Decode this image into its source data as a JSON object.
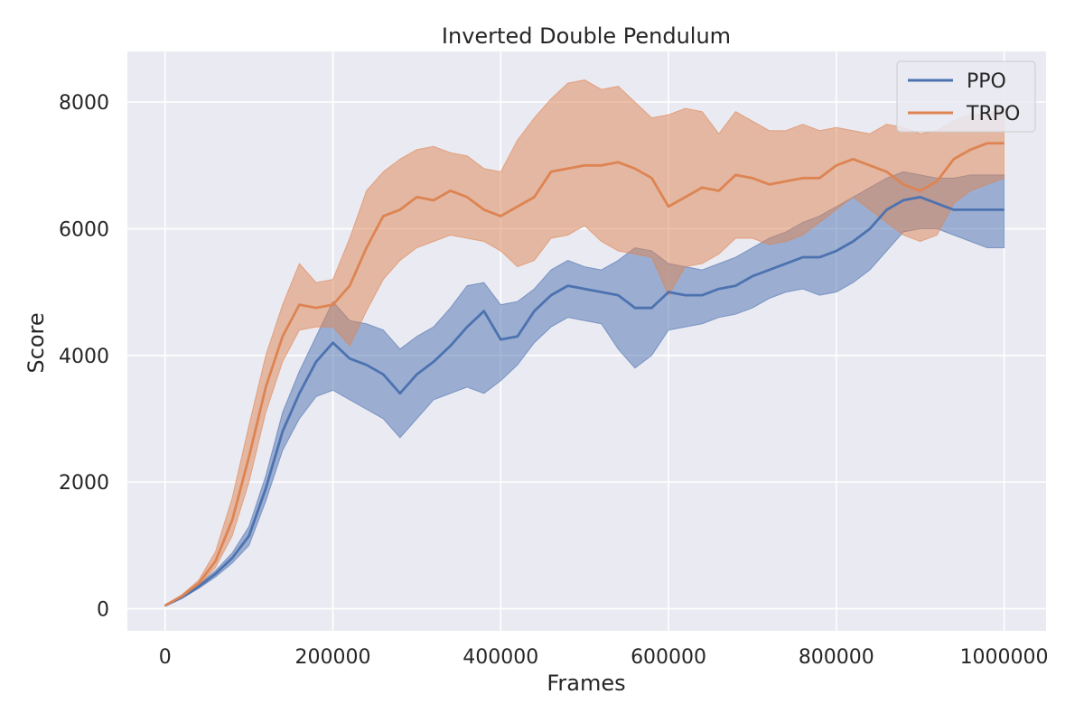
{
  "chart_data": {
    "type": "line",
    "title": "Inverted Double Pendulum",
    "xlabel": "Frames",
    "ylabel": "Score",
    "xlim": [
      -45000,
      1050000
    ],
    "ylim": [
      -350,
      8800
    ],
    "x_ticks": [
      0,
      200000,
      400000,
      600000,
      800000,
      1000000
    ],
    "x_tick_labels": [
      "0",
      "200000",
      "400000",
      "600000",
      "800000",
      "1000000"
    ],
    "y_ticks": [
      0,
      2000,
      4000,
      6000,
      8000
    ],
    "y_tick_labels": [
      "0",
      "2000",
      "4000",
      "6000",
      "8000"
    ],
    "grid": true,
    "legend_position": "top-right",
    "background_color": "#eaeaf2",
    "series": [
      {
        "name": "PPO",
        "color": "#4c72b0",
        "x": [
          0,
          20000,
          40000,
          60000,
          80000,
          100000,
          120000,
          140000,
          160000,
          180000,
          200000,
          220000,
          240000,
          260000,
          280000,
          300000,
          320000,
          340000,
          360000,
          380000,
          400000,
          420000,
          440000,
          460000,
          480000,
          500000,
          520000,
          540000,
          560000,
          580000,
          600000,
          620000,
          640000,
          660000,
          680000,
          700000,
          720000,
          740000,
          760000,
          780000,
          800000,
          820000,
          840000,
          860000,
          880000,
          900000,
          920000,
          940000,
          960000,
          980000,
          1000000
        ],
        "mean": [
          50,
          180,
          350,
          550,
          800,
          1150,
          1900,
          2800,
          3400,
          3900,
          4200,
          3950,
          3850,
          3700,
          3400,
          3700,
          3900,
          4150,
          4450,
          4700,
          4250,
          4300,
          4700,
          4950,
          5100,
          5050,
          5000,
          4950,
          4750,
          4750,
          5000,
          4950,
          4950,
          5050,
          5100,
          5250,
          5350,
          5450,
          5550,
          5550,
          5650,
          5800,
          6000,
          6300,
          6450,
          6500,
          6400,
          6300,
          6300,
          6300,
          6300
        ],
        "lower": [
          40,
          160,
          320,
          500,
          720,
          1000,
          1700,
          2500,
          3000,
          3350,
          3450,
          3300,
          3150,
          3000,
          2700,
          3000,
          3300,
          3400,
          3500,
          3400,
          3600,
          3850,
          4200,
          4450,
          4600,
          4550,
          4500,
          4100,
          3800,
          4000,
          4400,
          4450,
          4500,
          4600,
          4650,
          4750,
          4900,
          5000,
          5050,
          4950,
          5000,
          5150,
          5350,
          5650,
          5950,
          6000,
          6000,
          5900,
          5800,
          5700,
          5700
        ],
        "upper": [
          60,
          200,
          380,
          600,
          880,
          1300,
          2100,
          3100,
          3750,
          4300,
          4850,
          4550,
          4500,
          4400,
          4100,
          4300,
          4450,
          4750,
          5100,
          5150,
          4800,
          4850,
          5050,
          5350,
          5500,
          5400,
          5350,
          5500,
          5700,
          5650,
          5450,
          5400,
          5350,
          5450,
          5550,
          5700,
          5850,
          5950,
          6100,
          6200,
          6350,
          6500,
          6650,
          6800,
          6900,
          6850,
          6800,
          6800,
          6850,
          6850,
          6850
        ]
      },
      {
        "name": "TRPO",
        "color": "#dd8452",
        "x": [
          0,
          20000,
          40000,
          60000,
          80000,
          100000,
          120000,
          140000,
          160000,
          180000,
          200000,
          220000,
          240000,
          260000,
          280000,
          300000,
          320000,
          340000,
          360000,
          380000,
          400000,
          420000,
          440000,
          460000,
          480000,
          500000,
          520000,
          540000,
          560000,
          580000,
          600000,
          620000,
          640000,
          660000,
          680000,
          700000,
          720000,
          740000,
          760000,
          780000,
          800000,
          820000,
          840000,
          860000,
          880000,
          900000,
          920000,
          940000,
          960000,
          980000,
          1000000
        ],
        "mean": [
          50,
          200,
          400,
          750,
          1400,
          2400,
          3500,
          4300,
          4800,
          4750,
          4800,
          5100,
          5700,
          6200,
          6300,
          6500,
          6450,
          6600,
          6500,
          6300,
          6200,
          6350,
          6500,
          6900,
          6950,
          7000,
          7000,
          7050,
          6950,
          6800,
          6350,
          6500,
          6650,
          6600,
          6850,
          6800,
          6700,
          6750,
          6800,
          6800,
          7000,
          7100,
          7000,
          6900,
          6700,
          6600,
          6750,
          7100,
          7250,
          7350,
          7350
        ],
        "lower": [
          40,
          180,
          360,
          650,
          1150,
          2000,
          3100,
          3900,
          4400,
          4450,
          4450,
          4150,
          4700,
          5200,
          5500,
          5700,
          5800,
          5900,
          5850,
          5800,
          5650,
          5400,
          5500,
          5850,
          5900,
          6050,
          5800,
          5650,
          5600,
          5550,
          4950,
          5400,
          5450,
          5600,
          5850,
          5850,
          5750,
          5800,
          5900,
          6100,
          6300,
          6500,
          6300,
          6100,
          5900,
          5800,
          5900,
          6400,
          6600,
          6700,
          6800
        ],
        "upper": [
          60,
          220,
          450,
          900,
          1750,
          2900,
          4000,
          4800,
          5450,
          5150,
          5200,
          5850,
          6600,
          6900,
          7100,
          7250,
          7300,
          7200,
          7150,
          6950,
          6900,
          7400,
          7750,
          8050,
          8300,
          8350,
          8200,
          8250,
          8000,
          7750,
          7800,
          7900,
          7850,
          7500,
          7850,
          7700,
          7550,
          7550,
          7650,
          7550,
          7600,
          7550,
          7500,
          7650,
          7600,
          7500,
          7550,
          7700,
          7800,
          7800,
          7900
        ]
      }
    ]
  }
}
